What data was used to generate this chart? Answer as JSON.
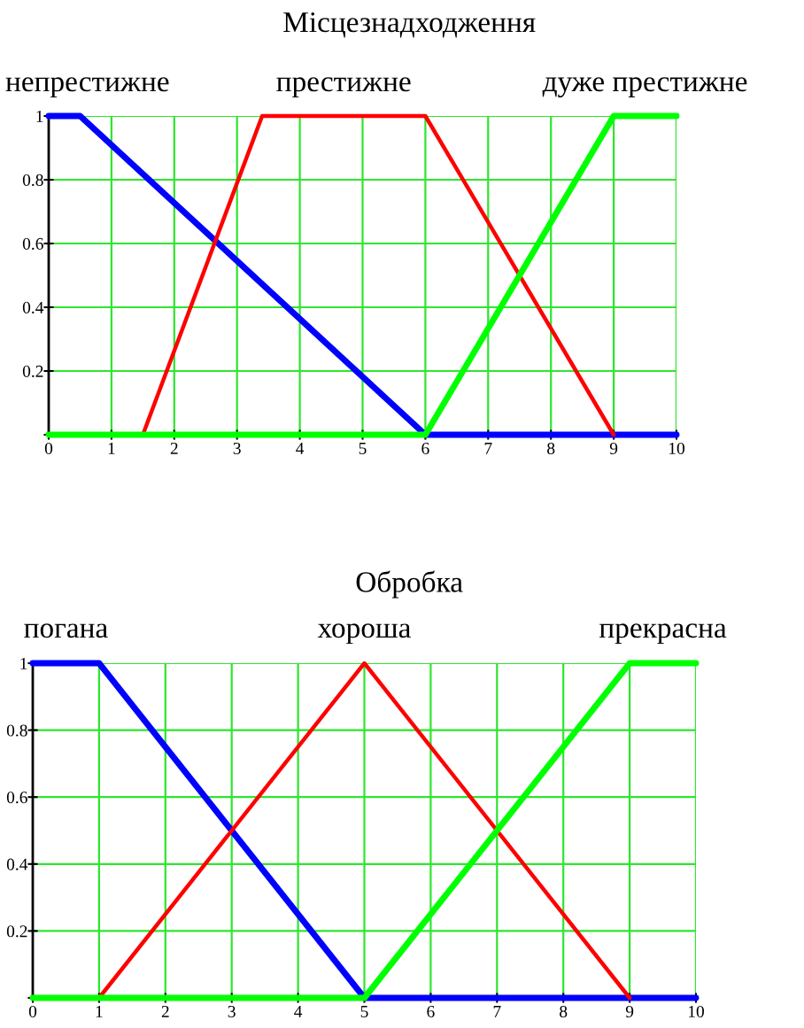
{
  "chart_data": [
    {
      "type": "line",
      "title": "Місцезнадходження",
      "xlim": [
        0,
        10
      ],
      "ylim": [
        0,
        1
      ],
      "xticks": [
        0,
        1,
        2,
        3,
        4,
        5,
        6,
        7,
        8,
        9,
        10
      ],
      "yticks": [
        {
          "value": 0,
          "label": null
        },
        0.2,
        0.4,
        0.6,
        0.8,
        1
      ],
      "grid": true,
      "series": [
        {
          "name": "непрестижне",
          "color": "#0000ff",
          "x": [
            0,
            0.5,
            6,
            10
          ],
          "values": [
            1,
            1,
            0,
            0
          ]
        },
        {
          "name": "престижне",
          "color": "#ff0000",
          "x": [
            1.5,
            3.4,
            6,
            9
          ],
          "values": [
            0,
            1,
            1,
            0
          ]
        },
        {
          "name": "дуже престижне",
          "color": "#00ff00",
          "x": [
            0,
            6,
            9,
            10
          ],
          "values": [
            0,
            0,
            1,
            1
          ]
        }
      ]
    },
    {
      "type": "line",
      "title": "Обробка",
      "xlim": [
        0,
        10
      ],
      "ylim": [
        0,
        1
      ],
      "xticks": [
        0,
        1,
        2,
        3,
        4,
        5,
        6,
        7,
        8,
        9,
        10
      ],
      "yticks": [
        {
          "value": 0,
          "label": null
        },
        0.2,
        0.4,
        0.6,
        0.8,
        1
      ],
      "grid": true,
      "series": [
        {
          "name": "погана",
          "color": "#0000ff",
          "x": [
            0,
            1,
            5,
            10
          ],
          "values": [
            1,
            1,
            0,
            0
          ]
        },
        {
          "name": "хороша",
          "color": "#ff0000",
          "x": [
            1,
            5,
            9
          ],
          "values": [
            0,
            1,
            0
          ]
        },
        {
          "name": "прекрасна",
          "color": "#00ff00",
          "x": [
            0,
            5,
            9,
            10
          ],
          "values": [
            0,
            0,
            1,
            1
          ]
        }
      ]
    }
  ]
}
